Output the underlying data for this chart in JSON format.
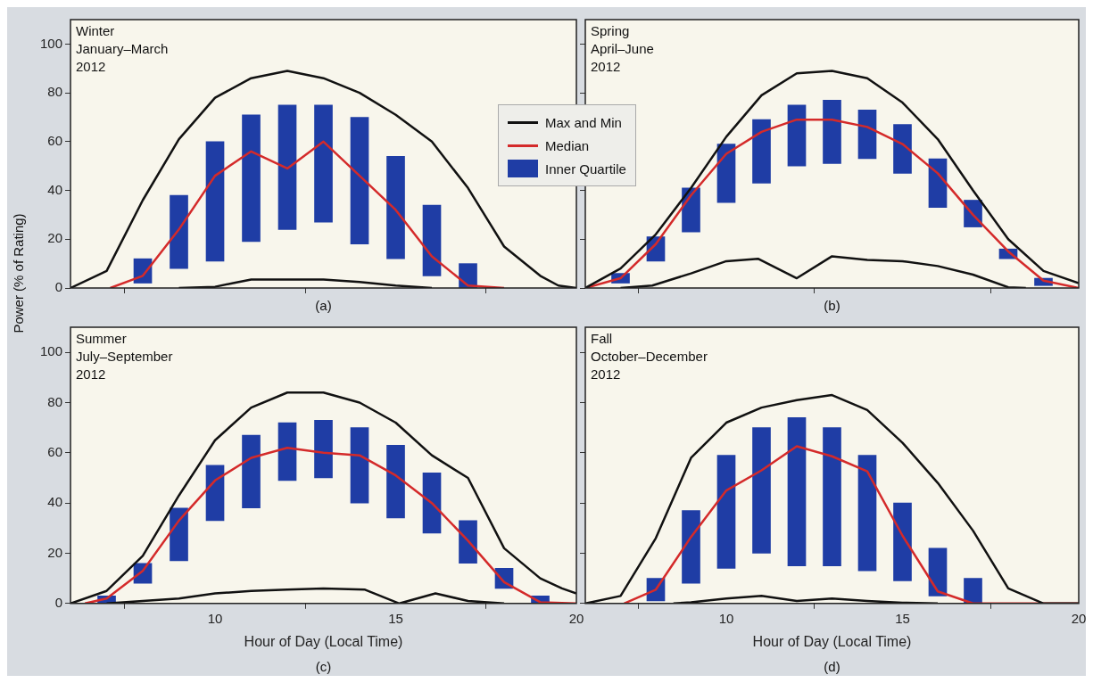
{
  "chart_data": [
    {
      "type": "line",
      "title": "Winter",
      "subtitle": "January–March",
      "annotations": [
        "2012",
        "(a)"
      ],
      "ylabel": "Power (% of Rating)",
      "xlim": [
        6,
        20
      ],
      "xticks": [
        10,
        15,
        20
      ],
      "ylim": [
        0,
        110
      ],
      "yticks": [
        0,
        20,
        40,
        60,
        80,
        100
      ],
      "tick_labels": "y",
      "marker": "none",
      "line_style": "solid",
      "legend": "top right",
      "series": [
        {
          "name": "Max and Min",
          "color": "#111111",
          "x": [
            6,
            7,
            8,
            9,
            10,
            11,
            12,
            13,
            14,
            15,
            16,
            17,
            18,
            19,
            19.5,
            20
          ],
          "values": [
            0,
            7,
            36,
            61,
            78,
            86,
            89,
            86,
            80,
            71,
            60,
            41,
            17,
            5,
            1,
            0
          ]
        },
        {
          "color": "#111111",
          "x": [
            9,
            10,
            10.5,
            11,
            12,
            13,
            14,
            15,
            16
          ],
          "values": [
            0,
            0.5,
            2,
            3.5,
            3.5,
            3.5,
            2.5,
            1,
            0
          ]
        },
        {
          "name": "Median",
          "color": "#d42a2a",
          "x": [
            7.1,
            8,
            9,
            10,
            11,
            12,
            13,
            14,
            15,
            16,
            17,
            18
          ],
          "values": [
            0,
            5,
            24,
            46,
            56,
            49,
            60,
            46,
            32,
            13,
            1,
            0
          ]
        },
        {
          "type": "bar",
          "name": "Inner Quartile",
          "color": "#1f3da5",
          "x": [
            8,
            9,
            10,
            11,
            12,
            13,
            14,
            15,
            16,
            17
          ],
          "base": [
            2,
            8,
            11,
            19,
            24,
            27,
            18,
            12,
            5,
            0
          ],
          "values": [
            10,
            30,
            49,
            52,
            51,
            48,
            52,
            42,
            29,
            10
          ]
        }
      ]
    },
    {
      "type": "line",
      "title": "Spring",
      "subtitle": "April–June",
      "annotations": [
        "2012",
        "(b)"
      ],
      "xlim": [
        6,
        20
      ],
      "xticks": [
        10,
        15,
        20
      ],
      "ylim": [
        0,
        110
      ],
      "yticks": [
        0,
        20,
        40,
        60,
        80,
        100
      ],
      "tick_labels": false,
      "marker": "none",
      "line_style": "solid",
      "series": [
        {
          "color": "#111111",
          "x": [
            6,
            7,
            8,
            9,
            10,
            11,
            12,
            13,
            14,
            15,
            16,
            17,
            18,
            19,
            20
          ],
          "values": [
            0,
            8,
            22,
            41,
            62,
            79,
            88,
            89,
            86,
            76,
            61,
            40,
            20,
            7,
            2
          ]
        },
        {
          "color": "#111111",
          "x": [
            7,
            7.9,
            9,
            10,
            10.9,
            12,
            13,
            14,
            15,
            16,
            17,
            18,
            18.5
          ],
          "values": [
            0,
            1,
            6,
            11,
            12,
            4,
            13,
            11.5,
            11,
            9,
            5.5,
            0.3,
            0
          ]
        },
        {
          "color": "#d42a2a",
          "x": [
            6,
            7,
            8,
            9,
            10,
            11,
            12,
            13,
            14,
            15,
            16,
            17,
            18,
            19,
            20
          ],
          "values": [
            0,
            4,
            18,
            38,
            55,
            64,
            69,
            69,
            66,
            59,
            47,
            30,
            15,
            3,
            0
          ]
        },
        {
          "type": "bar",
          "color": "#1f3da5",
          "x": [
            7,
            8,
            9,
            10,
            11,
            12,
            13,
            14,
            15,
            16,
            17,
            18,
            19
          ],
          "base": [
            2,
            11,
            23,
            35,
            43,
            50,
            51,
            53,
            47,
            33,
            25,
            12,
            1
          ],
          "values": [
            4,
            10,
            18,
            24,
            26,
            25,
            26,
            20,
            20,
            20,
            11,
            4,
            3
          ]
        }
      ]
    },
    {
      "type": "line",
      "title": "Summer",
      "subtitle": "July–September",
      "annotations": [
        "2012",
        "(c)"
      ],
      "xlabel": "Hour of Day (Local Time)",
      "xlim": [
        6,
        20
      ],
      "xticks": [
        10,
        15,
        20
      ],
      "ylim": [
        0,
        110
      ],
      "yticks": [
        0,
        20,
        40,
        60,
        80,
        100
      ],
      "marker": "none",
      "line_style": "solid",
      "series": [
        {
          "color": "#111111",
          "x": [
            6,
            7,
            8,
            9,
            10,
            11,
            12,
            13,
            14,
            15,
            16,
            17,
            18,
            19,
            19.6,
            20
          ],
          "values": [
            0,
            5,
            19,
            43,
            65,
            78,
            84,
            84,
            80,
            72,
            59,
            50,
            22,
            10,
            6,
            4
          ]
        },
        {
          "color": "#111111",
          "x": [
            7,
            9,
            10,
            11,
            12,
            13,
            14.15,
            15.1,
            16.1,
            17,
            18
          ],
          "values": [
            0,
            2,
            4,
            5,
            5.5,
            6,
            5.5,
            0,
            4,
            1,
            0
          ]
        },
        {
          "color": "#d42a2a",
          "x": [
            6.4,
            7,
            8,
            9,
            10,
            11,
            12,
            13,
            14,
            15,
            16,
            17,
            18,
            19,
            20
          ],
          "values": [
            0,
            2,
            13,
            33,
            49,
            58,
            62,
            60,
            59,
            51,
            40,
            25,
            8.5,
            0.5,
            0
          ]
        },
        {
          "type": "bar",
          "color": "#1f3da5",
          "x": [
            7,
            8,
            9,
            10,
            11,
            12,
            13,
            14,
            15,
            16,
            17,
            18,
            19
          ],
          "base": [
            0,
            8,
            17,
            33,
            38,
            49,
            50,
            40,
            34,
            28,
            16,
            6,
            0
          ],
          "values": [
            3,
            8,
            21,
            22,
            29,
            23,
            23,
            30,
            29,
            24,
            17,
            8,
            3
          ]
        }
      ]
    },
    {
      "type": "line",
      "title": "Fall",
      "subtitle": "October–December",
      "annotations": [
        "2012",
        "(d)"
      ],
      "xlabel": "Hour of Day (Local Time)",
      "xlim": [
        6,
        20
      ],
      "xticks": [
        10,
        15,
        20
      ],
      "ylim": [
        0,
        110
      ],
      "yticks": [
        0,
        20,
        40,
        60,
        80,
        100
      ],
      "tick_labels": "x",
      "marker": "none",
      "line_style": "solid",
      "series": [
        {
          "color": "#111111",
          "x": [
            6,
            7,
            8,
            9,
            10,
            11,
            12,
            13,
            14,
            15,
            16,
            17,
            18,
            19,
            20
          ],
          "values": [
            0,
            3,
            26,
            58,
            72,
            78,
            81,
            83,
            77,
            64,
            48,
            29,
            6,
            0,
            0
          ]
        },
        {
          "color": "#111111",
          "x": [
            8.5,
            9,
            10,
            11,
            12,
            13,
            14,
            15,
            16
          ],
          "values": [
            0,
            0.5,
            2,
            3,
            1,
            2,
            1,
            0.3,
            0
          ]
        },
        {
          "color": "#d42a2a",
          "x": [
            7.1,
            8,
            9,
            10,
            11,
            12,
            13,
            14,
            15,
            16,
            17,
            20
          ],
          "values": [
            0,
            5.5,
            26.5,
            45,
            53,
            62.6,
            58.6,
            52.6,
            27,
            4.8,
            0,
            0
          ]
        },
        {
          "type": "bar",
          "color": "#1f3da5",
          "x": [
            8,
            9,
            10,
            11,
            12,
            13,
            14,
            15,
            16,
            17
          ],
          "base": [
            1,
            8,
            14,
            20,
            15,
            15,
            13,
            9,
            3,
            0
          ],
          "values": [
            9,
            29,
            45,
            50,
            59,
            55,
            46,
            31,
            19,
            10
          ]
        }
      ]
    }
  ]
}
